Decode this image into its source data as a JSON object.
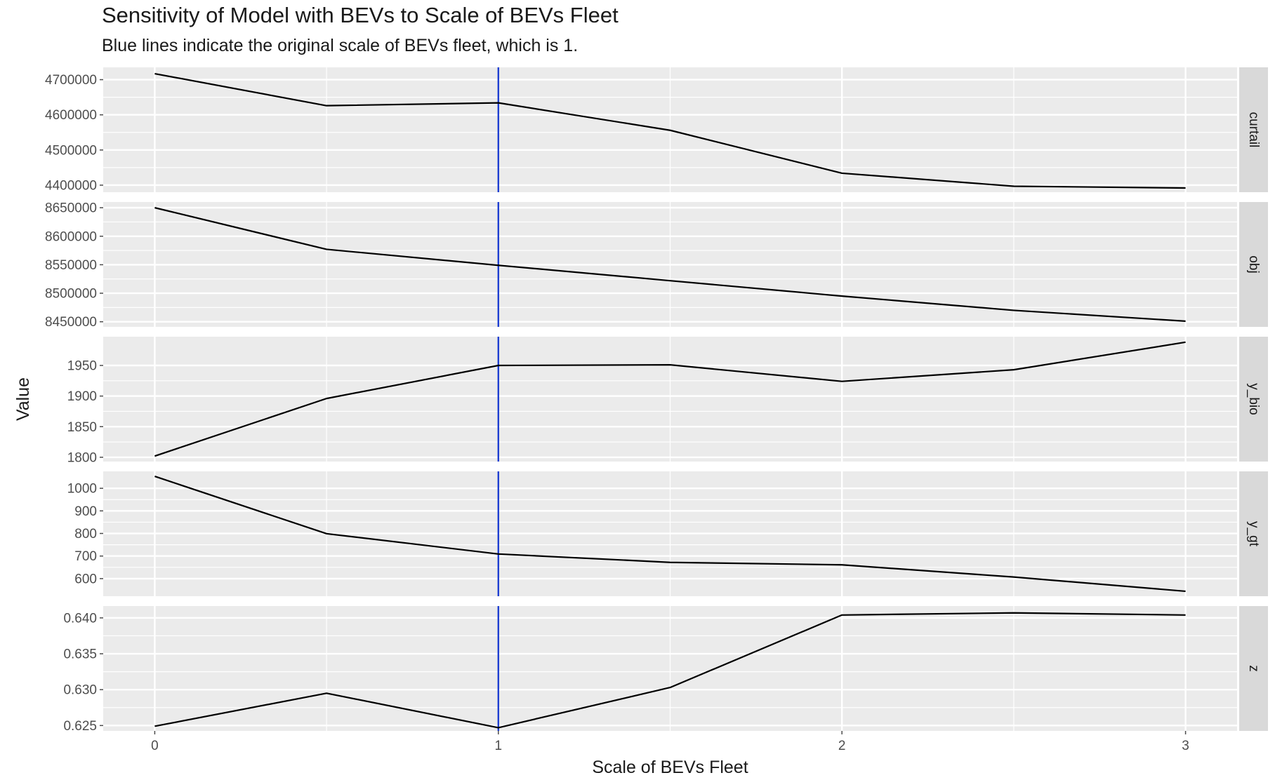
{
  "chart_data": {
    "type": "line",
    "title": "Sensitivity of Model with BEVs to Scale of BEVs Fleet",
    "subtitle": "Blue lines indicate the original scale of BEVs fleet, which is 1.",
    "xlabel": "Scale of BEVs Fleet",
    "ylabel": "Value",
    "x": [
      0,
      0.5,
      1,
      1.5,
      2,
      2.5,
      3
    ],
    "x_ticks": [
      0,
      1,
      2,
      3
    ],
    "x_tick_labels": [
      "0",
      "1",
      "2",
      "3"
    ],
    "xlim": [
      -0.15,
      3.15
    ],
    "reference_line": {
      "x": 1,
      "color": "#1f3fd1"
    },
    "line_color": "#000000",
    "panel_background": "#ebebeb",
    "strip_background": "#d9d9d9",
    "grid": true,
    "facets": [
      {
        "strip": "curtail",
        "values": [
          4717000,
          4626000,
          4634000,
          4556000,
          4434000,
          4397000,
          4392000
        ],
        "ylim": [
          4380000,
          4735000
        ],
        "y_ticks": [
          4400000,
          4500000,
          4600000,
          4700000
        ],
        "y_tick_labels": [
          "4400000",
          "4500000",
          "4600000",
          "4700000"
        ]
      },
      {
        "strip": "obj",
        "values": [
          8650000,
          8577000,
          8549000,
          8522000,
          8495000,
          8470000,
          8451000
        ],
        "ylim": [
          8441000,
          8660000
        ],
        "y_ticks": [
          8450000,
          8500000,
          8550000,
          8600000,
          8650000
        ],
        "y_tick_labels": [
          "8450000",
          "8500000",
          "8550000",
          "8600000",
          "8650000"
        ]
      },
      {
        "strip": "y_bio",
        "values": [
          1802,
          1896,
          1950,
          1951,
          1924,
          1943,
          1988
        ],
        "ylim": [
          1793,
          1997
        ],
        "y_ticks": [
          1800,
          1850,
          1900,
          1950
        ],
        "y_tick_labels": [
          "1800",
          "1850",
          "1900",
          "1950"
        ]
      },
      {
        "strip": "y_gt",
        "values": [
          1053,
          799,
          709,
          672,
          661,
          607,
          544
        ],
        "ylim": [
          522,
          1075
        ],
        "y_ticks": [
          600,
          700,
          800,
          900,
          1000
        ],
        "y_tick_labels": [
          "600",
          "700",
          "800",
          "900",
          "1000"
        ]
      },
      {
        "strip": "z",
        "values": [
          0.6249,
          0.6295,
          0.6247,
          0.6303,
          0.6404,
          0.6407,
          0.6404
        ],
        "ylim": [
          0.62425,
          0.64165
        ],
        "y_ticks": [
          0.625,
          0.63,
          0.635,
          0.64
        ],
        "y_tick_labels": [
          "0.625",
          "0.630",
          "0.635",
          "0.640"
        ]
      }
    ]
  }
}
